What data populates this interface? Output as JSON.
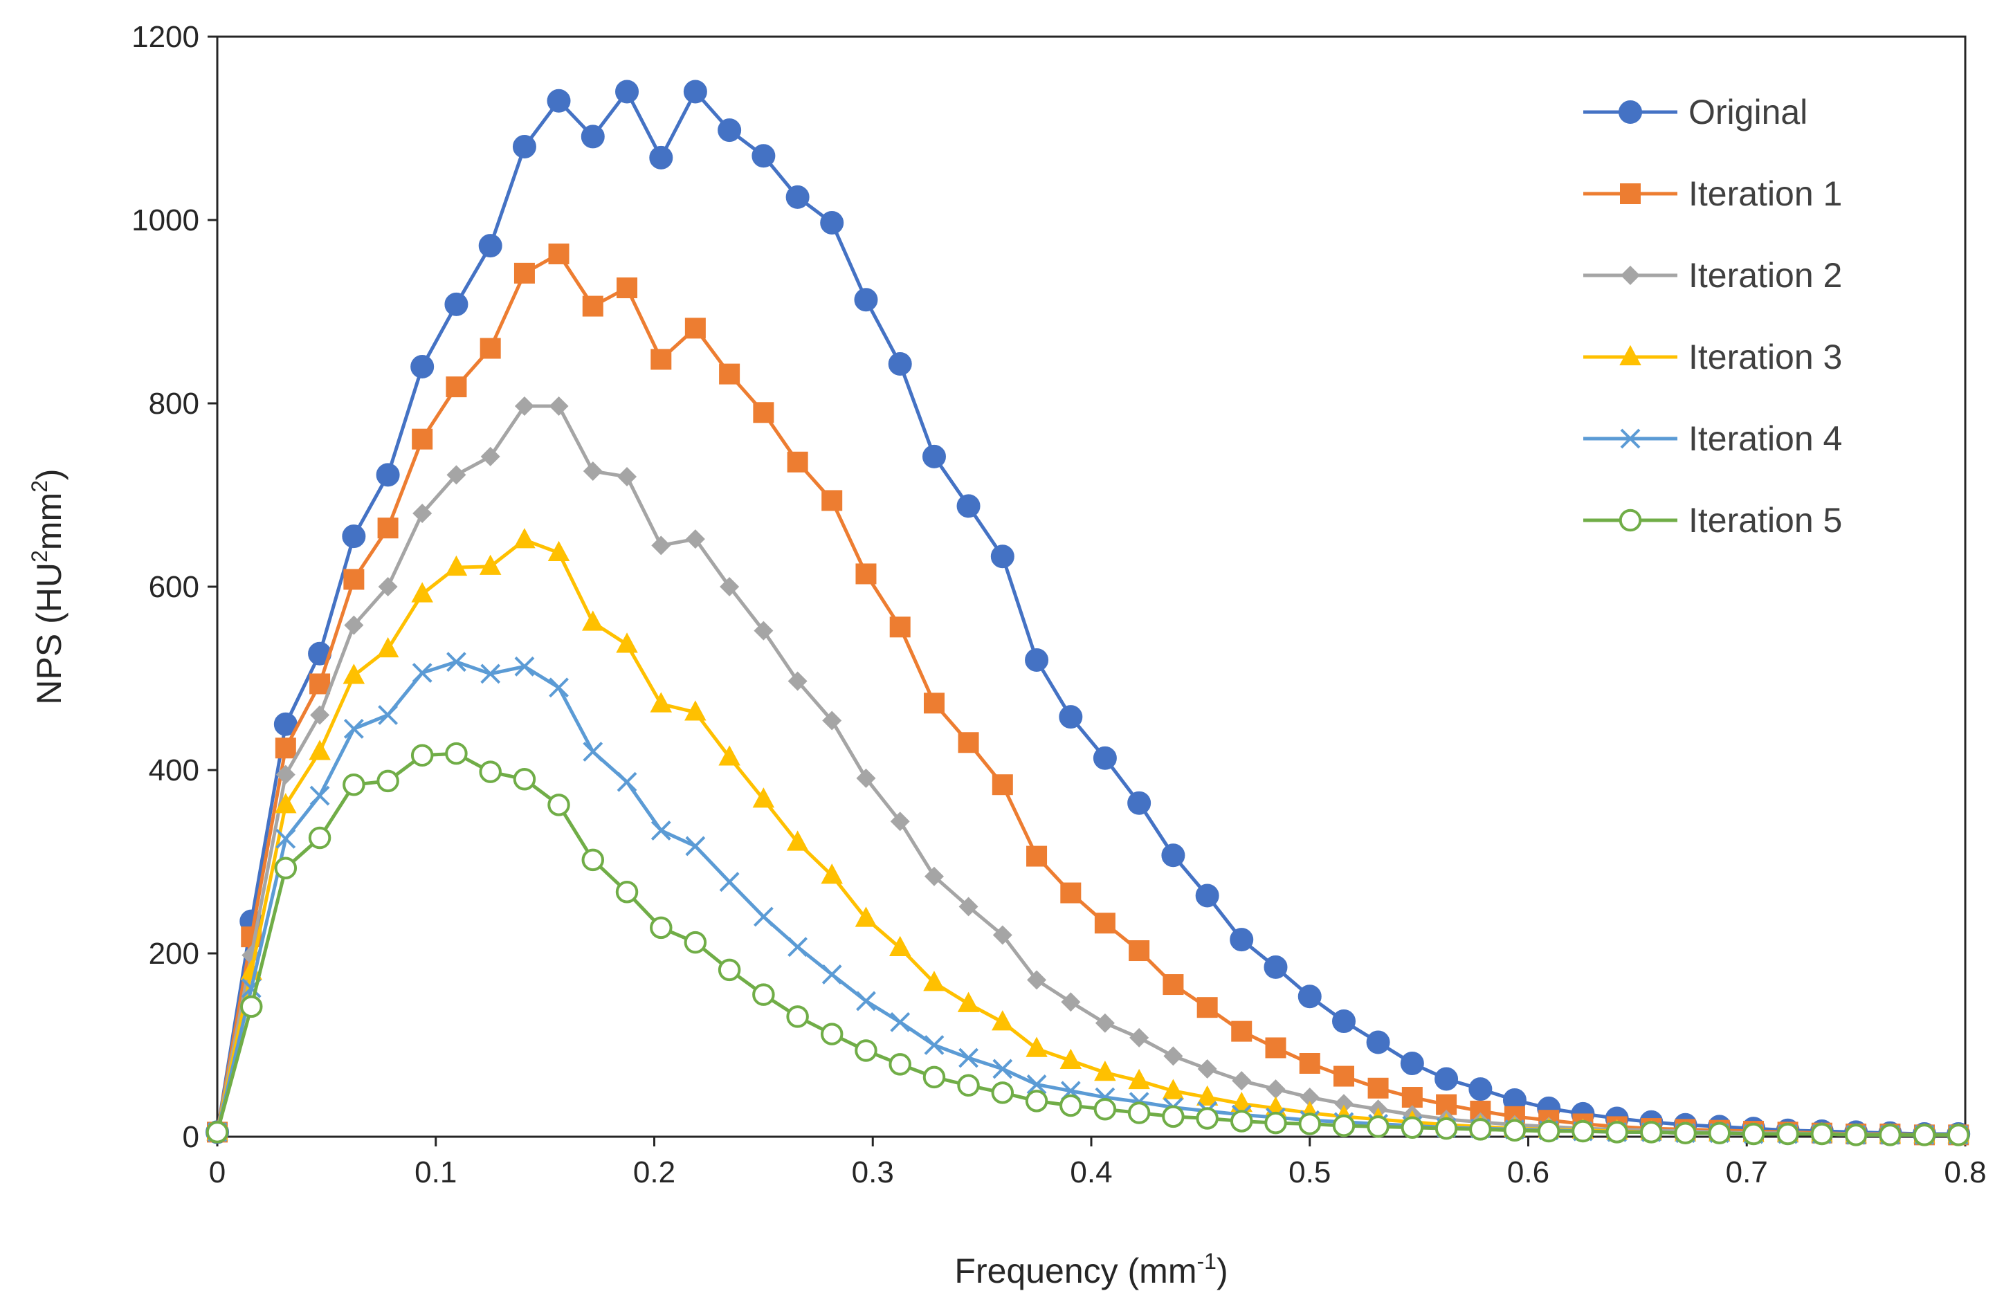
{
  "chart_data": {
    "type": "line",
    "title": "",
    "xlabel": {
      "base": "Frequency (mm",
      "sup": "-1",
      "tail": ")"
    },
    "ylabel": {
      "base": "NPS (HU",
      "sup1": "2",
      "mid": "mm",
      "sup2": "2",
      "tail": ")"
    },
    "xlim": [
      0,
      0.8
    ],
    "ylim": [
      0,
      1200
    ],
    "xticks": [
      0,
      0.1,
      0.2,
      0.3,
      0.4,
      0.5,
      0.6,
      0.7,
      0.8
    ],
    "xtick_labels": [
      "0",
      "0.1",
      "0.2",
      "0.3",
      "0.4",
      "0.5",
      "0.6",
      "0.7",
      "0.8"
    ],
    "yticks": [
      0,
      200,
      400,
      600,
      800,
      1000,
      1200
    ],
    "ytick_labels": [
      "0",
      "200",
      "400",
      "600",
      "800",
      "1000",
      "1200"
    ],
    "grid": false,
    "legend_position": "top-right",
    "x": [
      0,
      0.0156,
      0.0313,
      0.0469,
      0.0625,
      0.0781,
      0.0938,
      0.1094,
      0.125,
      0.1406,
      0.1563,
      0.1719,
      0.1875,
      0.2031,
      0.2188,
      0.2344,
      0.25,
      0.2656,
      0.2813,
      0.2969,
      0.3125,
      0.3281,
      0.3438,
      0.3594,
      0.375,
      0.3906,
      0.4063,
      0.4219,
      0.4375,
      0.4531,
      0.4688,
      0.4844,
      0.5,
      0.5156,
      0.5313,
      0.5469,
      0.5625,
      0.5781,
      0.5938,
      0.6094,
      0.625,
      0.6406,
      0.6563,
      0.6719,
      0.6875,
      0.7031,
      0.7188,
      0.7344,
      0.75,
      0.7656,
      0.7813,
      0.7969
    ],
    "series": [
      {
        "name": "Original",
        "color": "#4472C4",
        "marker": "circle",
        "values": [
          5,
          235,
          450,
          527,
          655,
          722,
          840,
          908,
          972,
          1080,
          1130,
          1091,
          1140,
          1068,
          1140,
          1098,
          1070,
          1025,
          997,
          913,
          843,
          742,
          688,
          633,
          520,
          458,
          413,
          364,
          307,
          263,
          215,
          185,
          153,
          126,
          103,
          80,
          63,
          52,
          40,
          31,
          25,
          20,
          16,
          13,
          11,
          9,
          7,
          6,
          5,
          4,
          3,
          3
        ]
      },
      {
        "name": "Iteration 1",
        "color": "#ED7D31",
        "marker": "square",
        "values": [
          5,
          218,
          424,
          494,
          608,
          664,
          761,
          818,
          860,
          942,
          963,
          906,
          926,
          848,
          882,
          832,
          790,
          736,
          694,
          614,
          556,
          473,
          430,
          384,
          306,
          266,
          233,
          203,
          166,
          141,
          115,
          97,
          80,
          66,
          53,
          43,
          35,
          28,
          22,
          18,
          14,
          11,
          9,
          8,
          7,
          6,
          5,
          4,
          3,
          3,
          2,
          2
        ]
      },
      {
        "name": "Iteration 2",
        "color": "#A5A5A5",
        "marker": "diamond",
        "values": [
          5,
          198,
          395,
          460,
          558,
          600,
          680,
          722,
          742,
          797,
          797,
          726,
          720,
          645,
          652,
          600,
          552,
          497,
          454,
          391,
          344,
          284,
          251,
          220,
          171,
          147,
          124,
          108,
          88,
          74,
          61,
          52,
          43,
          36,
          30,
          24,
          19,
          16,
          13,
          11,
          9,
          8,
          7,
          6,
          5,
          4,
          4,
          3,
          3,
          2,
          2,
          2
        ]
      },
      {
        "name": "Iteration 3",
        "color": "#FFC000",
        "marker": "triangle",
        "values": [
          5,
          180,
          362,
          420,
          503,
          532,
          592,
          621,
          622,
          651,
          637,
          561,
          537,
          472,
          463,
          414,
          368,
          321,
          285,
          238,
          206,
          168,
          145,
          125,
          96,
          83,
          70,
          61,
          50,
          43,
          36,
          31,
          26,
          22,
          19,
          16,
          13,
          11,
          9,
          8,
          7,
          6,
          5,
          4,
          4,
          3,
          3,
          3,
          2,
          2,
          2,
          2
        ]
      },
      {
        "name": "Iteration 4",
        "color": "#5B9BD5",
        "marker": "x",
        "values": [
          5,
          162,
          325,
          372,
          445,
          460,
          506,
          518,
          505,
          513,
          490,
          420,
          387,
          334,
          317,
          278,
          240,
          207,
          177,
          148,
          125,
          100,
          86,
          74,
          57,
          50,
          43,
          38,
          32,
          28,
          24,
          21,
          18,
          16,
          14,
          12,
          10,
          9,
          8,
          7,
          6,
          5,
          5,
          4,
          4,
          3,
          3,
          3,
          2,
          2,
          2,
          2
        ]
      },
      {
        "name": "Iteration 5",
        "color": "#70AD47",
        "marker": "open-circle",
        "values": [
          5,
          142,
          293,
          326,
          384,
          388,
          416,
          418,
          398,
          390,
          362,
          302,
          267,
          228,
          212,
          182,
          155,
          131,
          112,
          94,
          79,
          65,
          56,
          48,
          39,
          34,
          30,
          26,
          22,
          20,
          17,
          15,
          14,
          12,
          11,
          10,
          9,
          8,
          7,
          6,
          6,
          5,
          5,
          4,
          4,
          3,
          3,
          3,
          2,
          2,
          2,
          2
        ]
      }
    ]
  }
}
